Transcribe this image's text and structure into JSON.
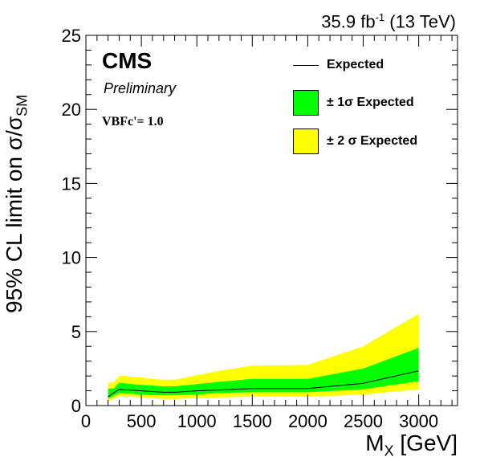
{
  "header": {
    "lumi_value": "35.9 fb",
    "lumi_exp": "-1",
    "lumi_energy": "(13 TeV)"
  },
  "labels": {
    "cms": "CMS",
    "preliminary": "Preliminary",
    "model": "VBFc'= 1.0"
  },
  "legend": {
    "expected": "Expected",
    "one_sigma": "± 1σ Expected",
    "two_sigma": "± 2 σ Expected"
  },
  "axes": {
    "ylabel_main": "95% CL limit on σ/σ",
    "ylabel_sub": "SM",
    "xlabel_main": "M",
    "xlabel_sub": "X",
    "xlabel_unit": " [GeV]"
  },
  "colors": {
    "one_sigma": "#00ff00",
    "two_sigma": "#ffff00",
    "expected": "#000000"
  },
  "chart_data": {
    "type": "area",
    "xlim": [
      0,
      3350
    ],
    "ylim": [
      0,
      25
    ],
    "x_ticks": [
      0,
      500,
      1000,
      1500,
      2000,
      2500,
      3000
    ],
    "y_ticks": [
      0,
      5,
      10,
      15,
      20,
      25
    ],
    "x": [
      200,
      250,
      300,
      350,
      400,
      500,
      600,
      700,
      800,
      1000,
      1200,
      1500,
      2000,
      2500,
      3000
    ],
    "series": [
      {
        "name": "± 2 σ Expected",
        "role": "band2",
        "upper": [
          1.55,
          1.55,
          2.0,
          2.0,
          1.95,
          1.9,
          1.8,
          1.75,
          1.75,
          2.05,
          2.35,
          2.7,
          2.75,
          4.0,
          6.2
        ],
        "lower": [
          0.3,
          0.45,
          0.65,
          0.6,
          0.6,
          0.55,
          0.5,
          0.45,
          0.45,
          0.5,
          0.55,
          0.6,
          0.6,
          0.75,
          1.1
        ]
      },
      {
        "name": "± 1σ Expected",
        "role": "band1",
        "upper": [
          1.15,
          1.15,
          1.55,
          1.5,
          1.45,
          1.4,
          1.35,
          1.3,
          1.3,
          1.45,
          1.6,
          1.8,
          1.8,
          2.5,
          3.9
        ],
        "lower": [
          0.45,
          0.65,
          0.85,
          0.8,
          0.8,
          0.75,
          0.7,
          0.7,
          0.7,
          0.75,
          0.85,
          0.9,
          0.9,
          1.1,
          1.65
        ]
      },
      {
        "name": "Expected",
        "role": "line",
        "values": [
          0.6,
          0.85,
          1.1,
          1.05,
          1.05,
          1.0,
          0.95,
          0.9,
          0.9,
          1.0,
          1.05,
          1.15,
          1.15,
          1.5,
          2.35
        ]
      }
    ]
  }
}
